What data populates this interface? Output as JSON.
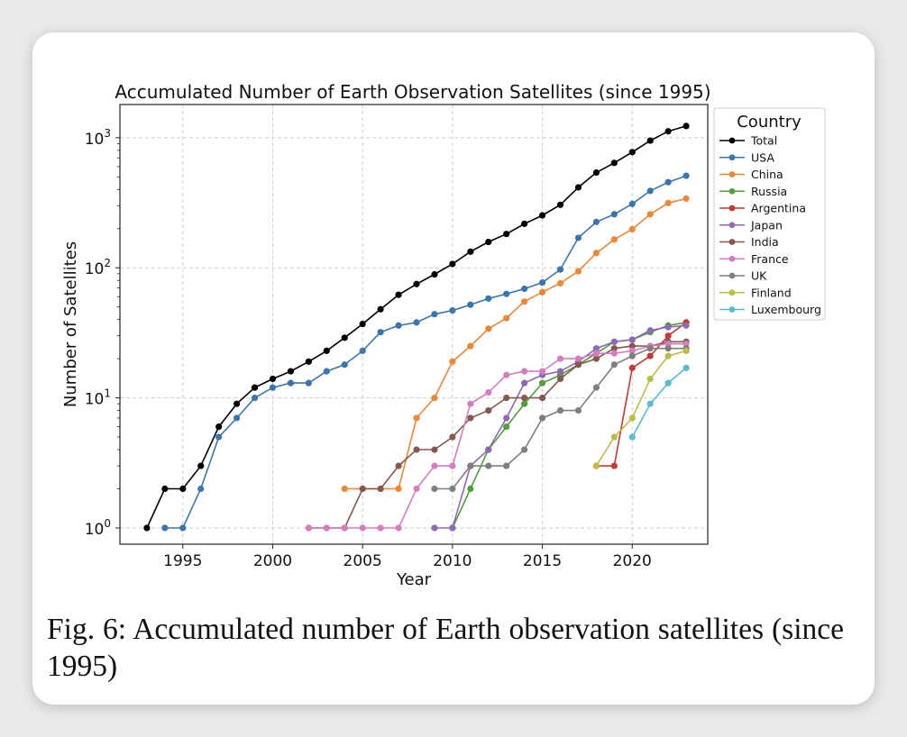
{
  "caption": "Fig. 6: Accumulated number of Earth observation satellites (since 1995)",
  "chart_data": {
    "type": "line",
    "title": "Accumulated Number of Earth Observation Satellites (since 1995)",
    "xlabel": "Year",
    "ylabel": "Number of Satellites",
    "yscale": "log",
    "xlim": [
      1991.5,
      2024.2
    ],
    "ylim": [
      0.75,
      1800
    ],
    "xticks": [
      1995,
      2000,
      2005,
      2010,
      2015,
      2020
    ],
    "yticks": [
      {
        "value": 1,
        "base": "10",
        "exp": "0"
      },
      {
        "value": 10,
        "base": "10",
        "exp": "1"
      },
      {
        "value": 100,
        "base": "10",
        "exp": "2"
      },
      {
        "value": 1000,
        "base": "10",
        "exp": "3"
      }
    ],
    "grid": true,
    "legend_title": "Country",
    "legend_position": "outside-right",
    "series": [
      {
        "name": "Total",
        "color": "#000000",
        "x": [
          1993,
          1994,
          1995,
          1996,
          1997,
          1998,
          1999,
          2000,
          2001,
          2002,
          2003,
          2004,
          2005,
          2006,
          2007,
          2008,
          2009,
          2010,
          2011,
          2012,
          2013,
          2014,
          2015,
          2016,
          2017,
          2018,
          2019,
          2020,
          2021,
          2022,
          2023
        ],
        "y": [
          1,
          2,
          2,
          3,
          6,
          9,
          12,
          14,
          16,
          19,
          23,
          29,
          37,
          48,
          62,
          75,
          89,
          107,
          133,
          158,
          182,
          218,
          253,
          305,
          415,
          540,
          640,
          775,
          950,
          1120,
          1230
        ]
      },
      {
        "name": "USA",
        "color": "#3b75af",
        "x": [
          1994,
          1995,
          1996,
          1997,
          1998,
          1999,
          2000,
          2001,
          2002,
          2003,
          2004,
          2005,
          2006,
          2007,
          2008,
          2009,
          2010,
          2011,
          2012,
          2013,
          2014,
          2015,
          2016,
          2017,
          2018,
          2019,
          2020,
          2021,
          2022,
          2023
        ],
        "y": [
          1,
          1,
          2,
          5,
          7,
          10,
          12,
          13,
          13,
          16,
          18,
          23,
          32,
          36,
          38,
          44,
          47,
          52,
          58,
          63,
          69,
          77,
          97,
          170,
          225,
          258,
          310,
          390,
          455,
          510
        ]
      },
      {
        "name": "China",
        "color": "#ef8636",
        "x": [
          2004,
          2005,
          2006,
          2007,
          2008,
          2009,
          2010,
          2011,
          2012,
          2013,
          2014,
          2015,
          2016,
          2017,
          2018,
          2019,
          2020,
          2021,
          2022,
          2023
        ],
        "y": [
          2,
          2,
          2,
          2,
          7,
          10,
          19,
          25,
          34,
          41,
          55,
          65,
          76,
          94,
          130,
          165,
          198,
          258,
          315,
          340
        ]
      },
      {
        "name": "Russia",
        "color": "#519e3e",
        "x": [
          2010,
          2011,
          2012,
          2013,
          2014,
          2015,
          2016,
          2017,
          2018,
          2019,
          2020,
          2021,
          2022,
          2023
        ],
        "y": [
          1,
          2,
          4,
          6,
          9,
          13,
          15,
          18,
          22,
          27,
          28,
          32,
          36,
          38
        ]
      },
      {
        "name": "Argentina",
        "color": "#c53a32",
        "x": [
          2018,
          2019,
          2020,
          2021,
          2022,
          2023
        ],
        "y": [
          3,
          3,
          17,
          21,
          30,
          38
        ]
      },
      {
        "name": "Japan",
        "color": "#8d69b8",
        "x": [
          2009,
          2010,
          2011,
          2012,
          2013,
          2014,
          2015,
          2016,
          2017,
          2018,
          2019,
          2020,
          2021,
          2022,
          2023
        ],
        "y": [
          1,
          1,
          3,
          4,
          7,
          13,
          15,
          16,
          19,
          24,
          27,
          28,
          33,
          35,
          36
        ]
      },
      {
        "name": "India",
        "color": "#84584e",
        "x": [
          2002,
          2003,
          2004,
          2005,
          2006,
          2007,
          2008,
          2009,
          2010,
          2011,
          2012,
          2013,
          2014,
          2015,
          2016,
          2017,
          2018,
          2019,
          2020,
          2021,
          2022,
          2023
        ],
        "y": [
          1,
          1,
          1,
          2,
          2,
          3,
          4,
          4,
          5,
          7,
          8,
          10,
          10,
          10,
          14,
          18,
          20,
          24,
          25,
          25,
          27,
          27
        ]
      },
      {
        "name": "France",
        "color": "#d57dbe",
        "x": [
          2002,
          2003,
          2004,
          2005,
          2006,
          2007,
          2008,
          2009,
          2010,
          2011,
          2012,
          2013,
          2014,
          2015,
          2016,
          2017,
          2018,
          2019,
          2020,
          2021,
          2022,
          2023
        ],
        "y": [
          1,
          1,
          1,
          1,
          1,
          1,
          2,
          3,
          3,
          9,
          11,
          15,
          16,
          16,
          20,
          20,
          22,
          22,
          23,
          25,
          26,
          26
        ]
      },
      {
        "name": "UK",
        "color": "#7f7f7f",
        "x": [
          2009,
          2010,
          2011,
          2012,
          2013,
          2014,
          2015,
          2016,
          2017,
          2018,
          2019,
          2020,
          2021,
          2022,
          2023
        ],
        "y": [
          2,
          2,
          3,
          3,
          3,
          4,
          7,
          8,
          8,
          12,
          18,
          21,
          24,
          24,
          24
        ]
      },
      {
        "name": "Finland",
        "color": "#bcbc45",
        "x": [
          2018,
          2019,
          2020,
          2021,
          2022,
          2023
        ],
        "y": [
          3,
          5,
          7,
          14,
          21,
          23
        ]
      },
      {
        "name": "Luxembourg",
        "color": "#57bccc",
        "x": [
          2020,
          2021,
          2022,
          2023
        ],
        "y": [
          5,
          9,
          13,
          17
        ]
      }
    ]
  }
}
